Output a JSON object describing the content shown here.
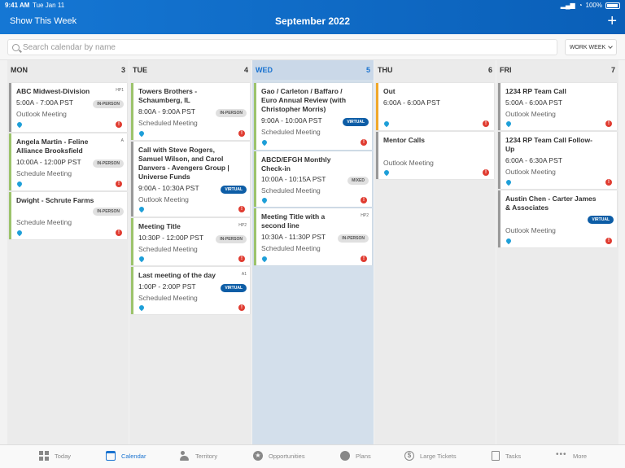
{
  "status_bar": {
    "time": "9:41 AM",
    "date": "Tue Jan 11",
    "battery": "100%"
  },
  "header": {
    "left_link": "Show This Week",
    "title": "September 2022",
    "add": "+"
  },
  "search": {
    "placeholder": "Search calendar by name",
    "view_select": "WORK WEEK"
  },
  "days": [
    {
      "name": "MON",
      "num": "3"
    },
    {
      "name": "TUE",
      "num": "4"
    },
    {
      "name": "WED",
      "num": "5"
    },
    {
      "name": "THU",
      "num": "6"
    },
    {
      "name": "FRI",
      "num": "7"
    }
  ],
  "events": {
    "mon": [
      {
        "title": "ABC Midwest-Division",
        "tag": "HP1",
        "time": "5:00A - 7:00A PST",
        "chip": "IN-PERSON",
        "sub": "Outlook Meeting",
        "color": "#999999"
      },
      {
        "title": "Angela Martin - Feline Alliance Brooksfield",
        "tag": "A",
        "time": "10:00A - 12:00P PST",
        "chip": "IN-PERSON",
        "sub": "Schedule Meeting",
        "color": "#9cc36b"
      },
      {
        "title": "Dwight - Schrute Farms",
        "tag": "",
        "time": "",
        "chip": "IN-PERSON",
        "sub": "Schedule Meeting",
        "color": "#9cc36b"
      }
    ],
    "tue": [
      {
        "title": "Towers Brothers - Schaumberg, IL",
        "time": "8:00A - 9:00A PST",
        "chip": "IN-PERSON",
        "sub": "Scheduled Meeting"
      },
      {
        "title": "Call with Steve Rogers, Samuel Wilson, and Carol Danvers - Avengers Group | Universe Funds",
        "time": "9:00A - 10:30A PST",
        "chip": "VIRTUAL",
        "sub": "Outlook Meeting"
      },
      {
        "title": "Meeting Title",
        "tag": "HP2",
        "time": "10:30P - 12:00P PST",
        "chip": "IN-PERSON",
        "sub": "Scheduled Meeting"
      },
      {
        "title": "Last meeting of the day",
        "tag": "A1",
        "time": "1:00P - 2:00P PST",
        "chip": "VIRTUAL",
        "sub": "Scheduled Meeting"
      }
    ],
    "wed": [
      {
        "title": "Gao / Carleton / Baffaro / Euro Annual Review (with Christopher Morris)",
        "time": "9:00A - 10:00A PST",
        "chip": "VIRTUAL",
        "sub": "Scheduled Meeting"
      },
      {
        "title": "ABCD/EFGH Monthly Check-in",
        "time": "10:00A - 10:15A PST",
        "chip": "MIXED",
        "sub": "Scheduled Meeting"
      },
      {
        "title": "Meeting Title with a second line",
        "tag": "HP2",
        "time": "10:30A - 11:30P PST",
        "chip": "IN-PERSON",
        "sub": "Scheduled Meeting"
      }
    ],
    "thu": [
      {
        "title": "Out",
        "time": "6:00A - 6:00A PST"
      },
      {
        "title": "Mentor Calls",
        "sub": "Outlook Meeting"
      }
    ],
    "fri": [
      {
        "title": "1234 RP Team Call",
        "time": "5:00A - 6:00A PST",
        "sub": "Outlook Meeting"
      },
      {
        "title": "1234 RP Team Call Follow-Up",
        "time": "6:00A - 6:30A PST",
        "sub": "Outlook Meeting"
      },
      {
        "title": "Austin Chen - Carter James & Associates",
        "chip": "VIRTUAL",
        "sub": "Outlook Meeting"
      }
    ]
  },
  "alert_glyph": "!",
  "tabs": [
    {
      "label": "Today",
      "icon": "grid-icon"
    },
    {
      "label": "Calendar",
      "icon": "calendar-icon"
    },
    {
      "label": "Territory",
      "icon": "people-icon"
    },
    {
      "label": "Opportunities",
      "icon": "star-icon"
    },
    {
      "label": "Plans",
      "icon": "circle-icon"
    },
    {
      "label": "Large Tickets",
      "icon": "dollar-icon"
    },
    {
      "label": "Tasks",
      "icon": "clipboard-icon"
    },
    {
      "label": "More",
      "icon": "more-icon"
    }
  ],
  "colors": {
    "header": "#1577d4",
    "accent": "#1a73d0",
    "green_bar": "#9cc36b",
    "gray_bar": "#999999",
    "orange_bar": "#f0a82a",
    "blue_bar": "#1e7ed3",
    "virtual_chip": "#0d5da6",
    "alert": "#e03c31"
  }
}
